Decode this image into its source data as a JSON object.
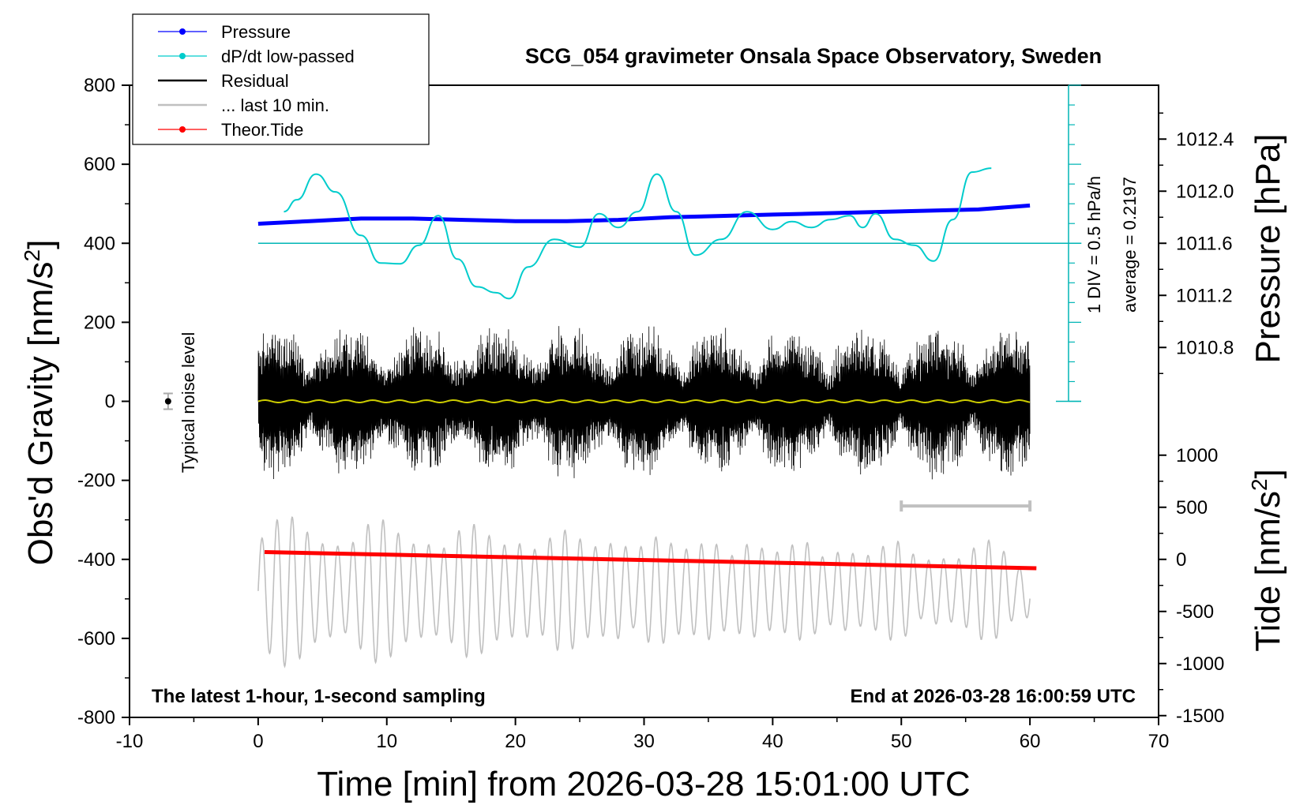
{
  "chart_data": {
    "type": "line",
    "title": "SCG_054 gravimeter Onsala Space Observatory, Sweden",
    "xlabel": "Time [min] from 2026-03-28 15:01:00 UTC",
    "ylabel_left_main": "Obs'd Gravity [nm/s",
    "ylabel_left_sup": "2",
    "ylabel_left_end": "]",
    "ylabel_right_top": "Pressure [hPa]",
    "ylabel_right_bottom_main": "Tide [nm/s",
    "ylabel_right_bottom_sup": "2",
    "ylabel_right_bottom_end": "]",
    "xlim": [
      -10,
      70
    ],
    "ylim": [
      -800,
      800
    ],
    "x_ticks": [
      -10,
      0,
      10,
      20,
      30,
      40,
      50,
      60,
      70
    ],
    "y_ticks": [
      -800,
      -600,
      -400,
      -200,
      0,
      200,
      400,
      600,
      800
    ],
    "pressure_axis": {
      "ticks": [
        1010.8,
        1011.2,
        1011.6,
        1012.0,
        1012.4
      ],
      "tick_labels": [
        "1010.8",
        "1011.2",
        "1011.6",
        "1012.0",
        "1012.4"
      ]
    },
    "tide_axis": {
      "ticks": [
        -1500,
        -1000,
        -500,
        0,
        500,
        1000
      ],
      "tick_labels": [
        "-1500",
        "-1000",
        "-500",
        "0",
        "500",
        "1000"
      ]
    },
    "legend": [
      {
        "label": "Pressure",
        "color": "#0000ff",
        "marker": true
      },
      {
        "label": "dP/dt low-passed",
        "color": "#00cccc",
        "marker": true
      },
      {
        "label": "Residual",
        "color": "#000000",
        "marker": false
      },
      {
        "label": "... last 10 min.",
        "color": "#c0c0c0",
        "marker": false
      },
      {
        "label": "Theor.Tide",
        "color": "#ff0000",
        "marker": true
      }
    ],
    "annotations": {
      "noise": "Typical noise level",
      "div": "1 DIV = 0.5 hPa/h",
      "average": "average = 0.2197",
      "latest": "The latest 1-hour, 1-second sampling",
      "end": "End at 2026-03-28 16:00:59 UTC"
    },
    "series": [
      {
        "name": "Pressure",
        "color": "#0000ff",
        "units": "hPa",
        "x": [
          0,
          4,
          8,
          12,
          16,
          20,
          24,
          28,
          32,
          36,
          40,
          44,
          48,
          52,
          56,
          60
        ],
        "values": [
          1011.75,
          1011.77,
          1011.79,
          1011.79,
          1011.78,
          1011.77,
          1011.77,
          1011.78,
          1011.8,
          1011.81,
          1011.82,
          1011.83,
          1011.84,
          1011.85,
          1011.86,
          1011.89
        ]
      },
      {
        "name": "dP/dt low-passed",
        "color": "#00cccc",
        "units": "nm/s2-plot",
        "x": [
          2,
          3,
          4.5,
          6,
          8,
          9.5,
          11,
          12.5,
          14,
          15.5,
          17,
          18.5,
          19.5,
          21,
          23,
          25,
          26.5,
          28,
          29.5,
          31,
          32.5,
          34,
          36,
          38,
          40,
          41.5,
          43,
          44.5,
          46,
          47,
          48,
          49.5,
          51,
          52.5,
          54,
          55.5,
          57
        ],
        "values": [
          480,
          510,
          575,
          530,
          420,
          350,
          348,
          395,
          470,
          360,
          290,
          275,
          260,
          340,
          410,
          390,
          475,
          440,
          480,
          575,
          480,
          370,
          410,
          480,
          435,
          455,
          440,
          460,
          470,
          440,
          475,
          410,
          395,
          355,
          460,
          580,
          590
        ]
      },
      {
        "name": "Theor.Tide",
        "color": "#ff0000",
        "units": "nm/s2",
        "x": [
          0.5,
          60.5
        ],
        "values": [
          70,
          -85
        ]
      }
    ],
    "noise_marker": {
      "x": -7,
      "y": 0,
      "error": 20
    },
    "last10_bar": {
      "x_start": 50,
      "x_end": 60,
      "y": -265
    }
  }
}
